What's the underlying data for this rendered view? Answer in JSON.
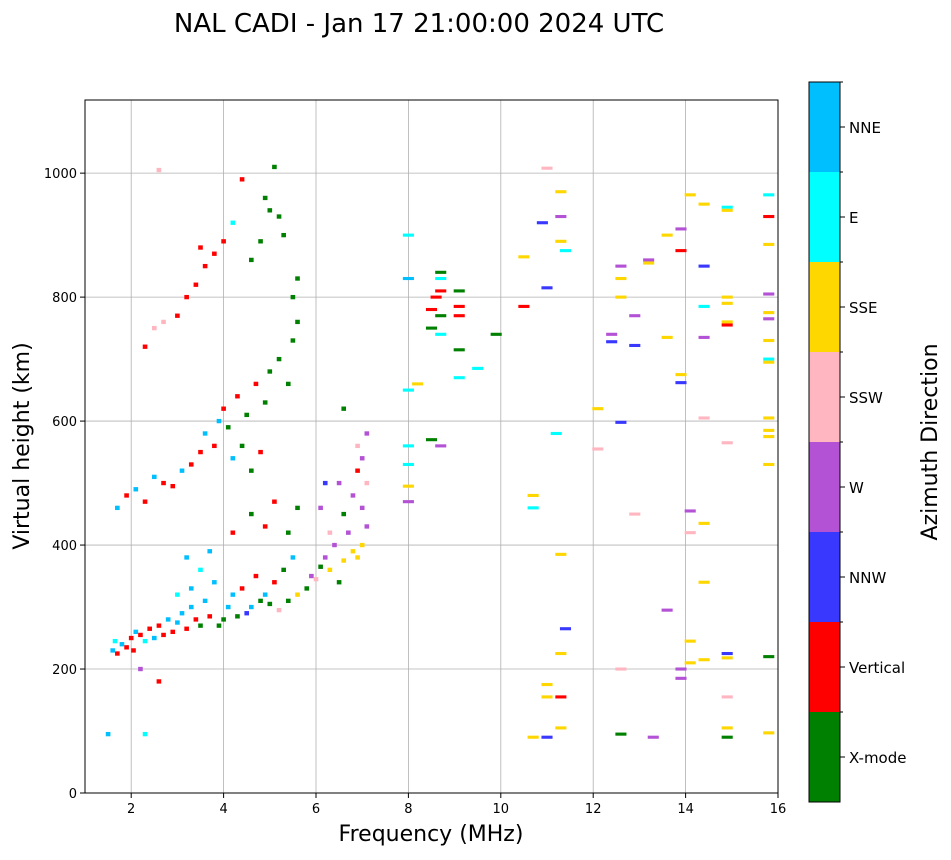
{
  "chart_data": {
    "type": "scatter",
    "title": "NAL CADI - Jan 17 21:00:00 2024 UTC",
    "xlabel": "Frequency (MHz)",
    "ylabel": "Virtual height (km)",
    "xlim": [
      1,
      16
    ],
    "ylim": [
      0,
      1118
    ],
    "xticks": [
      2,
      4,
      6,
      8,
      10,
      12,
      14,
      16
    ],
    "yticks": [
      0,
      200,
      400,
      600,
      800,
      1000
    ],
    "grid": true,
    "colorbar": {
      "label": "Azimuth Direction",
      "position": "right",
      "categories": [
        "X-mode",
        "Vertical",
        "NNW",
        "W",
        "SSW",
        "SSE",
        "E",
        "NNE"
      ],
      "colors": [
        "#008000",
        "#ff0000",
        "#3838ff",
        "#b452d6",
        "#ffb6c1",
        "#ffd700",
        "#00ffff",
        "#00bfff"
      ]
    },
    "point_format": [
      "frequency_mhz",
      "height_km",
      "category_index"
    ],
    "points": [
      [
        1.6,
        230,
        7
      ],
      [
        1.65,
        245,
        6
      ],
      [
        1.7,
        225,
        1
      ],
      [
        1.8,
        240,
        7
      ],
      [
        1.9,
        235,
        1
      ],
      [
        2.0,
        250,
        1
      ],
      [
        2.05,
        230,
        1
      ],
      [
        2.1,
        260,
        7
      ],
      [
        2.2,
        255,
        1
      ],
      [
        2.3,
        245,
        6
      ],
      [
        2.4,
        265,
        1
      ],
      [
        2.5,
        250,
        7
      ],
      [
        2.6,
        270,
        1
      ],
      [
        2.7,
        255,
        1
      ],
      [
        2.8,
        280,
        7
      ],
      [
        2.9,
        260,
        1
      ],
      [
        3.0,
        275,
        7
      ],
      [
        3.1,
        290,
        7
      ],
      [
        3.2,
        265,
        1
      ],
      [
        3.3,
        300,
        7
      ],
      [
        3.4,
        280,
        1
      ],
      [
        3.5,
        270,
        0
      ],
      [
        3.6,
        310,
        7
      ],
      [
        3.7,
        285,
        1
      ],
      [
        3.8,
        340,
        7
      ],
      [
        3.9,
        270,
        0
      ],
      [
        4.0,
        280,
        0
      ],
      [
        4.1,
        300,
        7
      ],
      [
        4.2,
        320,
        7
      ],
      [
        4.3,
        285,
        0
      ],
      [
        4.4,
        330,
        1
      ],
      [
        4.5,
        290,
        2
      ],
      [
        4.6,
        300,
        7
      ],
      [
        4.7,
        350,
        1
      ],
      [
        4.8,
        310,
        0
      ],
      [
        4.9,
        320,
        7
      ],
      [
        5.0,
        305,
        0
      ],
      [
        5.1,
        340,
        1
      ],
      [
        5.2,
        295,
        4
      ],
      [
        5.3,
        360,
        0
      ],
      [
        5.4,
        310,
        0
      ],
      [
        5.5,
        380,
        7
      ],
      [
        5.6,
        320,
        5
      ],
      [
        5.8,
        330,
        0
      ],
      [
        5.9,
        350,
        3
      ],
      [
        6.0,
        345,
        4
      ],
      [
        6.1,
        365,
        0
      ],
      [
        6.2,
        380,
        3
      ],
      [
        6.3,
        360,
        5
      ],
      [
        6.4,
        400,
        3
      ],
      [
        6.5,
        340,
        0
      ],
      [
        6.6,
        375,
        5
      ],
      [
        6.7,
        420,
        3
      ],
      [
        6.8,
        390,
        5
      ],
      [
        6.9,
        380,
        5
      ],
      [
        7.0,
        400,
        5
      ],
      [
        7.1,
        430,
        3
      ],
      [
        7.0,
        460,
        3
      ],
      [
        7.1,
        500,
        4
      ],
      [
        7.0,
        540,
        3
      ],
      [
        7.1,
        580,
        3
      ],
      [
        6.9,
        520,
        1
      ],
      [
        6.8,
        480,
        3
      ],
      [
        6.6,
        450,
        0
      ],
      [
        6.5,
        500,
        3
      ],
      [
        6.6,
        620,
        0
      ],
      [
        6.9,
        560,
        4
      ],
      [
        6.3,
        420,
        4
      ],
      [
        6.1,
        460,
        3
      ],
      [
        6.2,
        500,
        2
      ],
      [
        3.2,
        380,
        7
      ],
      [
        3.5,
        360,
        6
      ],
      [
        3.7,
        390,
        7
      ],
      [
        4.2,
        420,
        1
      ],
      [
        4.6,
        450,
        0
      ],
      [
        4.9,
        430,
        1
      ],
      [
        5.1,
        470,
        1
      ],
      [
        5.4,
        420,
        0
      ],
      [
        5.6,
        460,
        0
      ],
      [
        3.3,
        330,
        7
      ],
      [
        3.0,
        320,
        6
      ],
      [
        1.7,
        460,
        7
      ],
      [
        1.9,
        480,
        1
      ],
      [
        2.1,
        490,
        7
      ],
      [
        2.3,
        470,
        1
      ],
      [
        2.5,
        510,
        7
      ],
      [
        2.7,
        500,
        1
      ],
      [
        2.9,
        495,
        1
      ],
      [
        3.1,
        520,
        7
      ],
      [
        3.3,
        530,
        1
      ],
      [
        3.5,
        550,
        1
      ],
      [
        3.6,
        580,
        7
      ],
      [
        3.8,
        560,
        1
      ],
      [
        3.9,
        600,
        7
      ],
      [
        4.0,
        620,
        1
      ],
      [
        4.1,
        590,
        0
      ],
      [
        4.3,
        640,
        1
      ],
      [
        4.5,
        610,
        0
      ],
      [
        4.7,
        660,
        1
      ],
      [
        4.9,
        630,
        0
      ],
      [
        5.0,
        680,
        0
      ],
      [
        5.2,
        700,
        0
      ],
      [
        5.4,
        660,
        0
      ],
      [
        5.5,
        730,
        0
      ],
      [
        5.6,
        760,
        0
      ],
      [
        5.5,
        800,
        0
      ],
      [
        5.6,
        830,
        0
      ],
      [
        4.8,
        550,
        1
      ],
      [
        4.6,
        520,
        0
      ],
      [
        4.4,
        560,
        0
      ],
      [
        4.2,
        540,
        7
      ],
      [
        2.3,
        720,
        1
      ],
      [
        2.5,
        750,
        4
      ],
      [
        2.7,
        760,
        4
      ],
      [
        3.0,
        770,
        1
      ],
      [
        3.2,
        800,
        1
      ],
      [
        3.4,
        820,
        1
      ],
      [
        3.6,
        850,
        1
      ],
      [
        3.8,
        870,
        1
      ],
      [
        4.0,
        890,
        1
      ],
      [
        4.2,
        920,
        6
      ],
      [
        4.4,
        990,
        1
      ],
      [
        2.6,
        1005,
        4
      ],
      [
        3.5,
        880,
        1
      ],
      [
        4.6,
        860,
        0
      ],
      [
        4.8,
        890,
        0
      ],
      [
        5.0,
        940,
        0
      ],
      [
        5.1,
        1010,
        0
      ],
      [
        5.2,
        930,
        0
      ],
      [
        4.9,
        960,
        0
      ],
      [
        5.3,
        900,
        0
      ],
      [
        1.5,
        95,
        7
      ],
      [
        2.3,
        95,
        6
      ],
      [
        2.6,
        180,
        1
      ],
      [
        2.2,
        200,
        3
      ],
      [
        8.0,
        900,
        6
      ],
      [
        8.0,
        830,
        7
      ],
      [
        8.0,
        650,
        6
      ],
      [
        8.0,
        560,
        6
      ],
      [
        8.0,
        530,
        6
      ],
      [
        8.0,
        470,
        3
      ],
      [
        8.0,
        495,
        5
      ],
      [
        8.2,
        660,
        5
      ],
      [
        8.5,
        780,
        1
      ],
      [
        8.5,
        750,
        0
      ],
      [
        8.5,
        570,
        0
      ],
      [
        8.6,
        800,
        1
      ],
      [
        8.7,
        840,
        0
      ],
      [
        8.7,
        830,
        6
      ],
      [
        8.7,
        810,
        1
      ],
      [
        8.7,
        770,
        0
      ],
      [
        8.7,
        740,
        6
      ],
      [
        8.7,
        560,
        3
      ],
      [
        9.1,
        810,
        0
      ],
      [
        9.1,
        785,
        1
      ],
      [
        9.1,
        770,
        1
      ],
      [
        9.1,
        715,
        0
      ],
      [
        9.1,
        670,
        6
      ],
      [
        9.5,
        685,
        6
      ],
      [
        9.9,
        740,
        0
      ],
      [
        10.5,
        785,
        1
      ],
      [
        10.5,
        865,
        5
      ],
      [
        10.7,
        480,
        5
      ],
      [
        10.7,
        460,
        6
      ],
      [
        10.7,
        90,
        5
      ],
      [
        10.9,
        920,
        2
      ],
      [
        11.0,
        1008,
        4
      ],
      [
        11.0,
        815,
        2
      ],
      [
        11.0,
        175,
        5
      ],
      [
        11.0,
        155,
        5
      ],
      [
        11.0,
        90,
        2
      ],
      [
        11.2,
        580,
        6
      ],
      [
        11.3,
        970,
        5
      ],
      [
        11.3,
        930,
        3
      ],
      [
        11.3,
        890,
        5
      ],
      [
        11.3,
        385,
        5
      ],
      [
        11.3,
        225,
        5
      ],
      [
        11.3,
        155,
        1
      ],
      [
        11.3,
        105,
        5
      ],
      [
        11.4,
        875,
        6
      ],
      [
        11.4,
        265,
        2
      ],
      [
        12.1,
        620,
        5
      ],
      [
        12.1,
        555,
        4
      ],
      [
        12.4,
        740,
        3
      ],
      [
        12.4,
        728,
        2
      ],
      [
        12.6,
        850,
        3
      ],
      [
        12.6,
        830,
        5
      ],
      [
        12.6,
        800,
        5
      ],
      [
        12.6,
        598,
        2
      ],
      [
        12.6,
        200,
        4
      ],
      [
        12.6,
        95,
        0
      ],
      [
        12.9,
        770,
        3
      ],
      [
        12.9,
        722,
        2
      ],
      [
        12.9,
        450,
        4
      ],
      [
        13.2,
        860,
        3
      ],
      [
        13.2,
        855,
        5
      ],
      [
        13.3,
        90,
        3
      ],
      [
        13.6,
        900,
        5
      ],
      [
        13.6,
        735,
        5
      ],
      [
        13.6,
        295,
        3
      ],
      [
        13.9,
        910,
        3
      ],
      [
        13.9,
        875,
        1
      ],
      [
        13.9,
        675,
        5
      ],
      [
        13.9,
        662,
        2
      ],
      [
        13.9,
        200,
        3
      ],
      [
        13.9,
        185,
        3
      ],
      [
        14.1,
        965,
        5
      ],
      [
        14.1,
        455,
        3
      ],
      [
        14.1,
        420,
        4
      ],
      [
        14.1,
        245,
        5
      ],
      [
        14.1,
        210,
        5
      ],
      [
        14.4,
        950,
        5
      ],
      [
        14.4,
        850,
        2
      ],
      [
        14.4,
        785,
        6
      ],
      [
        14.4,
        735,
        3
      ],
      [
        14.4,
        605,
        4
      ],
      [
        14.4,
        435,
        5
      ],
      [
        14.4,
        340,
        5
      ],
      [
        14.4,
        215,
        5
      ],
      [
        14.9,
        945,
        6
      ],
      [
        14.9,
        940,
        5
      ],
      [
        14.9,
        800,
        5
      ],
      [
        14.9,
        790,
        5
      ],
      [
        14.9,
        760,
        5
      ],
      [
        14.9,
        755,
        1
      ],
      [
        14.9,
        565,
        4
      ],
      [
        14.9,
        225,
        2
      ],
      [
        14.9,
        218,
        5
      ],
      [
        14.9,
        155,
        4
      ],
      [
        14.9,
        105,
        5
      ],
      [
        14.9,
        90,
        0
      ],
      [
        15.8,
        965,
        6
      ],
      [
        15.8,
        930,
        1
      ],
      [
        15.8,
        885,
        5
      ],
      [
        15.8,
        805,
        3
      ],
      [
        15.8,
        775,
        5
      ],
      [
        15.8,
        765,
        3
      ],
      [
        15.8,
        730,
        5
      ],
      [
        15.8,
        700,
        6
      ],
      [
        15.8,
        695,
        5
      ],
      [
        15.8,
        605,
        5
      ],
      [
        15.8,
        585,
        5
      ],
      [
        15.8,
        575,
        5
      ],
      [
        15.8,
        530,
        5
      ],
      [
        15.8,
        220,
        0
      ],
      [
        15.8,
        97,
        5
      ]
    ]
  }
}
